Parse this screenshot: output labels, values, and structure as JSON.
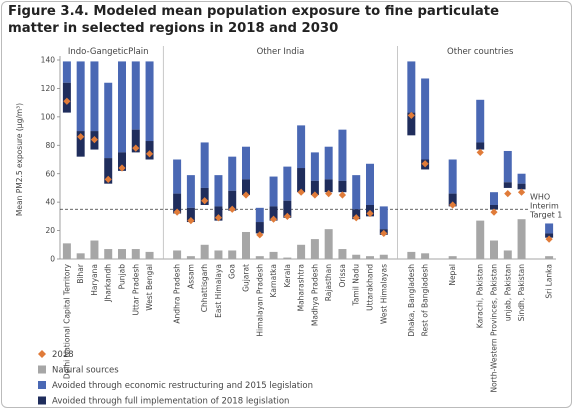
{
  "chart_data": {
    "type": "floating-bar",
    "title": "Figure 3.4. Modeled mean population exposure to fine particulate matter in selected regions in 2018 and 2030",
    "y_label": "Mean PM2.5 exposure (µg/m³)",
    "groups": [
      "Indo-GangeticPlain",
      "Other India",
      "Other countries"
    ],
    "categories": [
      "Delhi National Capital Territory",
      "Bihar",
      "Haryana",
      "Jharkandh",
      "Punjab",
      "Uttar Pradesh",
      "West Bengal",
      null,
      "Andhra Pradesh",
      "Assam",
      "Chhattisgarh",
      "East Himalaya",
      "Goa",
      "Gujarat",
      "Himalayan Pradesh",
      "Karnatka",
      "Kerala",
      "Maharashtra",
      "Madhya Pradesh",
      "Rajasthan",
      "Orissa",
      "Tamil Nadu",
      "Uttarakhand",
      "West Himalayas",
      null,
      "Dhaka, Bangladesh",
      "Rest of Bangladesh",
      null,
      "Nepal",
      null,
      "Karachi, Pakistan",
      "North-Western Provinces, Pakistan",
      "unjab, Pakistan",
      "Sindh, Pakistan",
      null,
      "Sri Lanka"
    ],
    "series": [
      {
        "name": "2018",
        "color": "#e07b39",
        "values": [
          111,
          86,
          84,
          56,
          64,
          78,
          74,
          null,
          33,
          27,
          41,
          29,
          35,
          45,
          17,
          28,
          30,
          47,
          45,
          46,
          45,
          29,
          32,
          18,
          null,
          101,
          67,
          null,
          38,
          null,
          75,
          33,
          46,
          47,
          null,
          14
        ]
      },
      {
        "name": "Natural sources",
        "color": "#a6a6a6",
        "values": [
          11,
          4,
          13,
          7,
          7,
          7,
          5,
          null,
          6,
          2,
          10,
          6,
          6,
          19,
          2,
          5,
          1,
          10,
          14,
          21,
          7,
          3,
          2,
          3,
          null,
          5,
          4,
          null,
          2,
          null,
          27,
          13,
          6,
          28,
          null,
          2
        ]
      },
      {
        "name": "Avoided through economic restructuring and 2015 legislation",
        "color": "#4a68b4",
        "values": [
          [
            124,
            139
          ],
          [
            90,
            139
          ],
          [
            90,
            139
          ],
          [
            71,
            124
          ],
          [
            75,
            139
          ],
          [
            91,
            139
          ],
          [
            83,
            139
          ],
          null,
          [
            46,
            70
          ],
          [
            36,
            59
          ],
          [
            50,
            82
          ],
          [
            37,
            59
          ],
          [
            48,
            72
          ],
          [
            56,
            79
          ],
          [
            26,
            36
          ],
          [
            37,
            58
          ],
          [
            41,
            65
          ],
          [
            64,
            94
          ],
          [
            55,
            75
          ],
          [
            56,
            79
          ],
          [
            55,
            91
          ],
          [
            35,
            59
          ],
          [
            38,
            67
          ],
          [
            21,
            37
          ],
          null,
          [
            103,
            139
          ],
          [
            70,
            127
          ],
          null,
          [
            46,
            70
          ],
          null,
          [
            82,
            112
          ],
          [
            38,
            47
          ],
          [
            54,
            76
          ],
          [
            53,
            60
          ],
          null,
          [
            18,
            25
          ]
        ]
      },
      {
        "name": "Avoided through full implementation of 2018 legislation",
        "color": "#1f2d5c",
        "values": [
          [
            103,
            124
          ],
          [
            72,
            90
          ],
          [
            77,
            90
          ],
          [
            53,
            71
          ],
          [
            62,
            75
          ],
          [
            75,
            91
          ],
          [
            70,
            83
          ],
          null,
          [
            32,
            46
          ],
          [
            26,
            36
          ],
          [
            38,
            50
          ],
          [
            27,
            37
          ],
          [
            34,
            48
          ],
          [
            45,
            56
          ],
          [
            18,
            26
          ],
          [
            27,
            37
          ],
          [
            29,
            41
          ],
          [
            47,
            64
          ],
          [
            45,
            55
          ],
          [
            47,
            56
          ],
          [
            47,
            55
          ],
          [
            28,
            35
          ],
          [
            30,
            38
          ],
          [
            17,
            21
          ],
          null,
          [
            87,
            103
          ],
          [
            63,
            70
          ],
          null,
          [
            37,
            46
          ],
          null,
          [
            77,
            82
          ],
          [
            35,
            38
          ],
          [
            50,
            54
          ],
          [
            49,
            53
          ],
          null,
          [
            15,
            18
          ]
        ]
      }
    ],
    "ylim": [
      0,
      140
    ],
    "yticks": [
      0,
      20,
      40,
      60,
      80,
      100,
      120,
      140
    ],
    "reference_line": {
      "value": 35,
      "lines": [
        "WHO",
        "Interim",
        "Target 1"
      ]
    }
  }
}
